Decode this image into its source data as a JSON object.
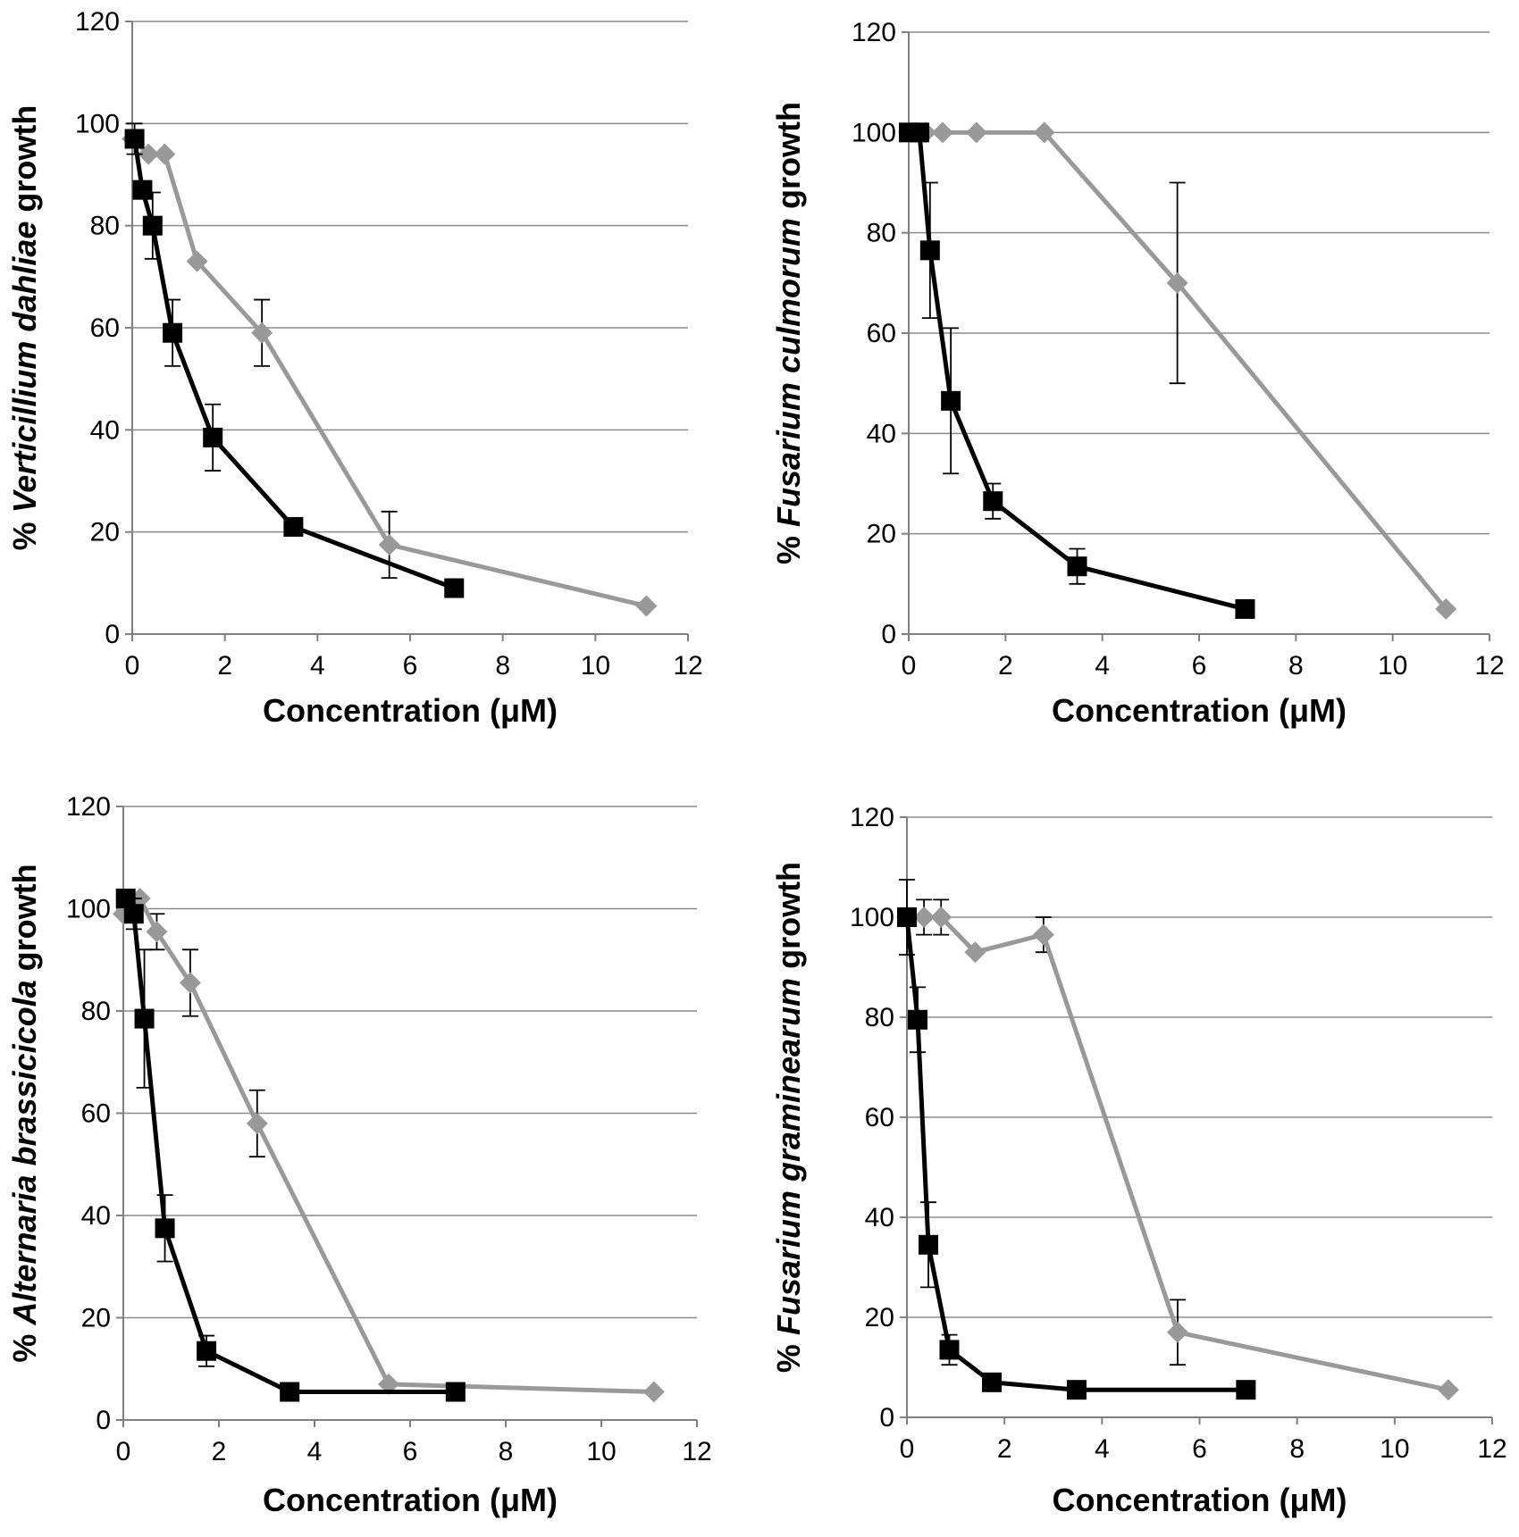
{
  "chart_data": [
    {
      "type": "line",
      "xlabel": "Concentration (μM)",
      "ylabel_parts": [
        "% ",
        "Verticillium dahliae",
        " growth"
      ],
      "xlim": [
        0,
        12
      ],
      "xticks": [
        0,
        2,
        4,
        6,
        8,
        10,
        12
      ],
      "ylim": [
        0,
        120
      ],
      "yticks": [
        0,
        20,
        40,
        60,
        80,
        100,
        120
      ],
      "grid": true,
      "series": [
        {
          "name": "gray-diamond",
          "color": "#999999",
          "marker": "diamond",
          "x": [
            0,
            0.35,
            0.7,
            1.4,
            2.8,
            5.55,
            11.1
          ],
          "y": [
            97,
            94,
            94,
            73,
            59,
            17.5,
            5.5
          ],
          "err": [
            0,
            0,
            0,
            0,
            6.5,
            6.5,
            0
          ]
        },
        {
          "name": "black-square",
          "color": "#000000",
          "marker": "square",
          "x": [
            0.05,
            0.22,
            0.44,
            0.87,
            1.74,
            3.48,
            6.95
          ],
          "y": [
            97,
            87,
            80,
            59,
            38.5,
            21,
            9
          ],
          "err": [
            3,
            0,
            6.5,
            6.5,
            6.5,
            0,
            0
          ]
        }
      ]
    },
    {
      "type": "line",
      "xlabel": "Concentration (μM)",
      "ylabel_parts": [
        "% ",
        "Fusarium culmorum",
        " growth"
      ],
      "xlim": [
        0,
        12
      ],
      "xticks": [
        0,
        2,
        4,
        6,
        8,
        10,
        12
      ],
      "ylim": [
        0,
        120
      ],
      "yticks": [
        0,
        20,
        40,
        60,
        80,
        100,
        120
      ],
      "grid": true,
      "series": [
        {
          "name": "gray-diamond",
          "color": "#999999",
          "marker": "diamond",
          "x": [
            0,
            0.35,
            0.7,
            1.4,
            2.8,
            5.55,
            11.1
          ],
          "y": [
            100,
            100,
            100,
            100,
            100,
            70,
            5
          ],
          "err": [
            0,
            0,
            0,
            0,
            0,
            20,
            0
          ]
        },
        {
          "name": "black-square",
          "color": "#000000",
          "marker": "square",
          "x": [
            0,
            0.22,
            0.44,
            0.87,
            1.74,
            3.48,
            6.95
          ],
          "y": [
            100,
            100,
            76.5,
            46.5,
            26.5,
            13.5,
            5
          ],
          "err": [
            0,
            0,
            13.5,
            14.5,
            3.5,
            3.5,
            0
          ]
        }
      ]
    },
    {
      "type": "line",
      "xlabel": "Concentration (μM)",
      "ylabel_parts": [
        "% ",
        "Alternaria brassicicola",
        " growth"
      ],
      "xlim": [
        0,
        12
      ],
      "xticks": [
        0,
        2,
        4,
        6,
        8,
        10,
        12
      ],
      "ylim": [
        0,
        120
      ],
      "yticks": [
        0,
        20,
        40,
        60,
        80,
        100,
        120
      ],
      "grid": true,
      "series": [
        {
          "name": "gray-diamond",
          "color": "#999999",
          "marker": "diamond",
          "x": [
            0,
            0.35,
            0.7,
            1.4,
            2.8,
            5.55,
            11.1
          ],
          "y": [
            99,
            102,
            95.5,
            85.5,
            58,
            7,
            5.5
          ],
          "err": [
            0,
            0,
            3.5,
            6.5,
            6.5,
            0,
            0
          ]
        },
        {
          "name": "black-square",
          "color": "#000000",
          "marker": "square",
          "x": [
            0.05,
            0.22,
            0.44,
            0.87,
            1.74,
            3.48,
            6.95
          ],
          "y": [
            102,
            99,
            78.5,
            37.5,
            13.5,
            5.5,
            5.5
          ],
          "err": [
            0,
            3,
            13.5,
            6.5,
            3,
            0,
            0
          ]
        }
      ]
    },
    {
      "type": "line",
      "xlabel": "Concentration (μM)",
      "ylabel_parts": [
        "% ",
        "Fusarium graminearum",
        " growth"
      ],
      "xlim": [
        0,
        12
      ],
      "xticks": [
        0,
        2,
        4,
        6,
        8,
        10,
        12
      ],
      "ylim": [
        0,
        120
      ],
      "yticks": [
        0,
        20,
        40,
        60,
        80,
        100,
        120
      ],
      "grid": true,
      "series": [
        {
          "name": "gray-diamond",
          "color": "#999999",
          "marker": "diamond",
          "x": [
            0,
            0.35,
            0.7,
            1.4,
            2.8,
            5.55,
            11.1
          ],
          "y": [
            100,
            100,
            100,
            93,
            96.5,
            17,
            5.5
          ],
          "err": [
            0,
            3.5,
            3.5,
            0,
            3.5,
            6.5,
            0
          ]
        },
        {
          "name": "black-square",
          "color": "#000000",
          "marker": "square",
          "x": [
            0,
            0.22,
            0.44,
            0.87,
            1.74,
            3.48,
            6.95
          ],
          "y": [
            100,
            79.5,
            34.5,
            13.5,
            7,
            5.5,
            5.5
          ],
          "err": [
            7.5,
            6.5,
            8.5,
            3,
            0,
            0,
            0
          ]
        }
      ]
    }
  ]
}
